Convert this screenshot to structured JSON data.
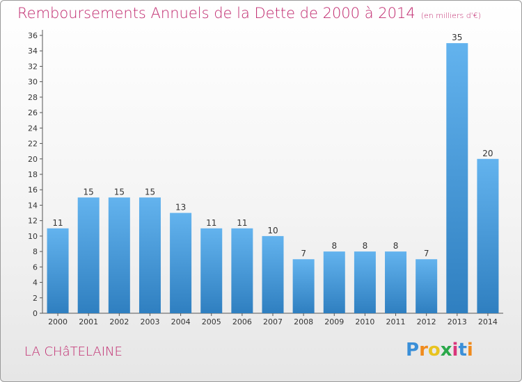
{
  "header": {
    "title": "Remboursements Annuels de la Dette de 2000 à 2014",
    "unit": "(en milliers d'€)"
  },
  "footer": {
    "commune": "LA CHâTELAINE",
    "logo_letters": [
      "P",
      "r",
      "o",
      "x",
      "i",
      "t",
      "i"
    ],
    "logo_colors": [
      "#3a8fd8",
      "#f08a1c",
      "#e8c31f",
      "#2aa84a",
      "#d9357a",
      "#3a8fd8",
      "#f08a1c"
    ]
  },
  "colors": {
    "bar_light": "#63b3ee",
    "bar_dark": "#2f7fc0",
    "axis": "#555555",
    "grid": "#d6d6d6",
    "text": "#333333"
  },
  "chart_data": {
    "type": "bar",
    "title": "Remboursements Annuels de la Dette de 2000 à 2014",
    "subtitle": "(en milliers d'€)",
    "categories": [
      "2000",
      "2001",
      "2002",
      "2003",
      "2004",
      "2005",
      "2006",
      "2007",
      "2008",
      "2009",
      "2010",
      "2011",
      "2012",
      "2013",
      "2014"
    ],
    "values": [
      11,
      15,
      15,
      15,
      13,
      11,
      11,
      10,
      7,
      8,
      8,
      8,
      7,
      35,
      20
    ],
    "ylim": [
      0,
      36
    ],
    "yticks": [
      0,
      2,
      4,
      6,
      8,
      10,
      12,
      14,
      16,
      18,
      20,
      22,
      24,
      26,
      28,
      30,
      32,
      34,
      36
    ],
    "grid": false,
    "xlabel": "",
    "ylabel": ""
  }
}
